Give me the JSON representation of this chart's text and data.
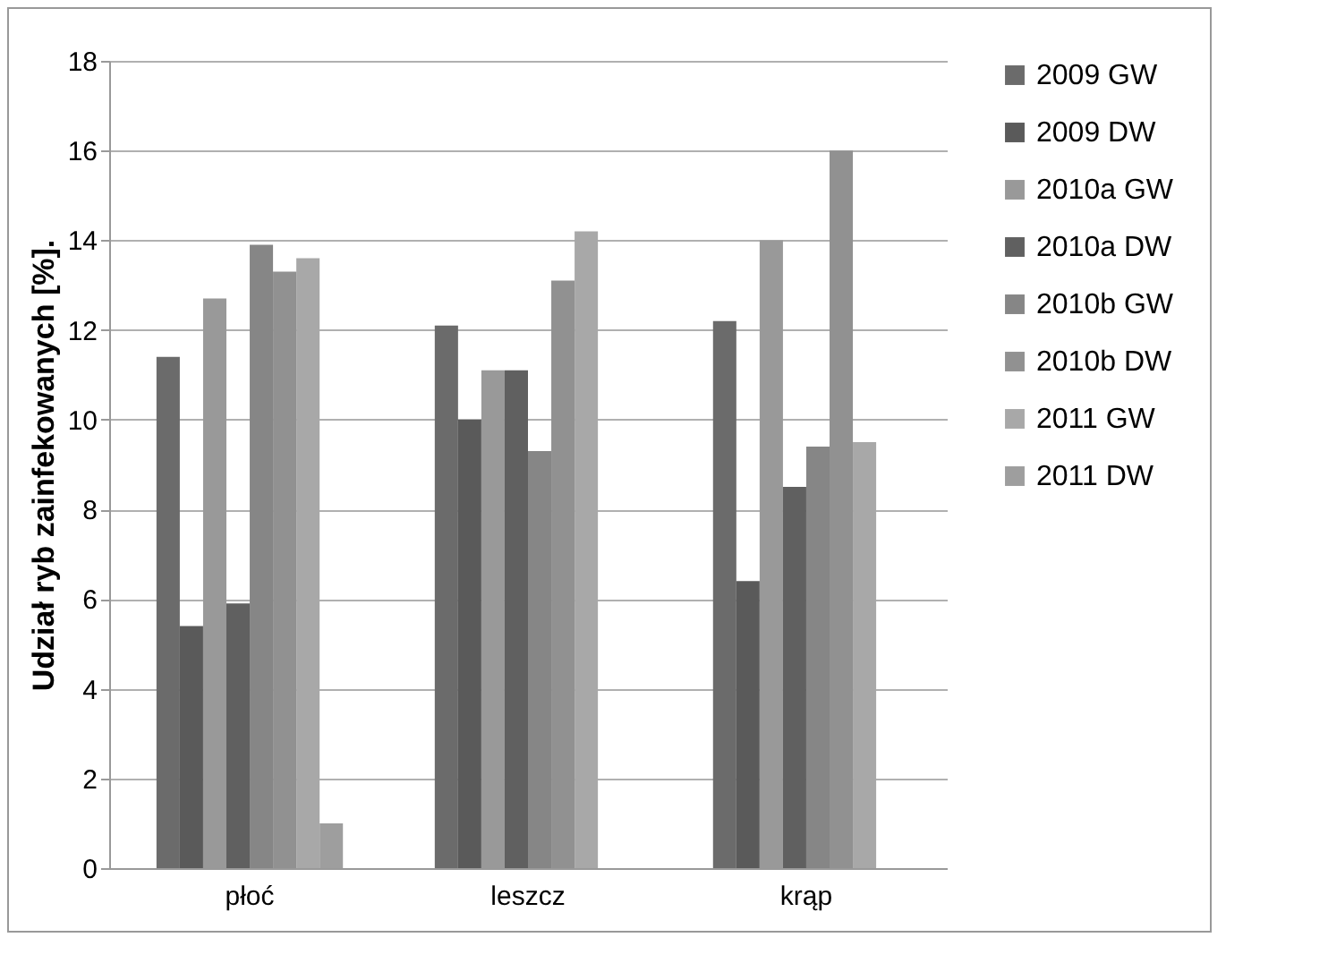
{
  "chart_data": {
    "type": "bar",
    "ylabel": "Udział ryb zainfekowanych [%].",
    "categories": [
      "płoć",
      "leszcz",
      "krąp"
    ],
    "series": [
      {
        "name": "2009 GW",
        "color": "#6b6b6b",
        "values": [
          11.4,
          12.1,
          12.2
        ]
      },
      {
        "name": "2009 DW",
        "color": "#5a5a5a",
        "values": [
          5.4,
          10.0,
          6.4
        ]
      },
      {
        "name": "2010a GW",
        "color": "#999999",
        "values": [
          12.7,
          11.1,
          14.0
        ]
      },
      {
        "name": "2010a DW",
        "color": "#606060",
        "values": [
          5.9,
          11.1,
          8.5
        ]
      },
      {
        "name": "2010b GW",
        "color": "#868686",
        "values": [
          13.9,
          9.3,
          9.4
        ]
      },
      {
        "name": "2010b DW",
        "color": "#919191",
        "values": [
          13.3,
          13.1,
          16.0
        ]
      },
      {
        "name": "2011 GW",
        "color": "#a8a8a8",
        "values": [
          13.6,
          14.2,
          9.5
        ]
      },
      {
        "name": "2011 DW",
        "color": "#9e9e9e",
        "values": [
          1.0,
          null,
          null
        ]
      }
    ],
    "ylim": [
      0,
      18
    ],
    "yticks": [
      0,
      2,
      4,
      6,
      8,
      10,
      12,
      14,
      16,
      18
    ],
    "grid": "y",
    "legend": "right"
  }
}
